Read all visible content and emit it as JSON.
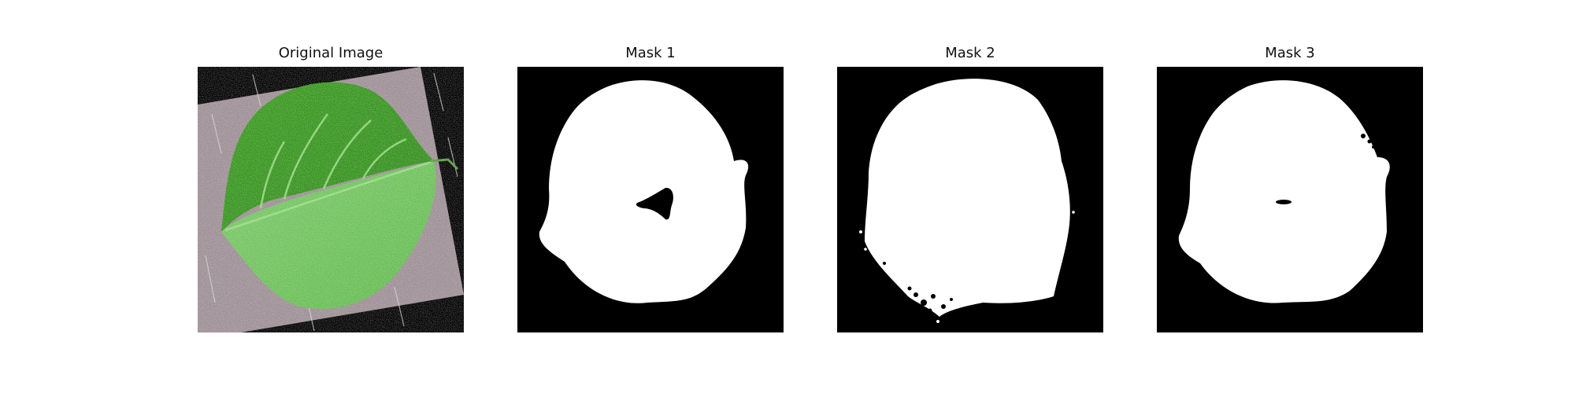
{
  "figure": {
    "panels": [
      {
        "title": "Original Image"
      },
      {
        "title": "Mask 1"
      },
      {
        "title": "Mask 2"
      },
      {
        "title": "Mask 3"
      }
    ],
    "colors": {
      "mask_background": "#000000",
      "mask_foreground": "#ffffff",
      "photo_backdrop": "#9c8e94",
      "leaf_dark": "#2f8a18",
      "leaf_mid": "#4cb52e",
      "leaf_light": "#8fd47a"
    }
  }
}
